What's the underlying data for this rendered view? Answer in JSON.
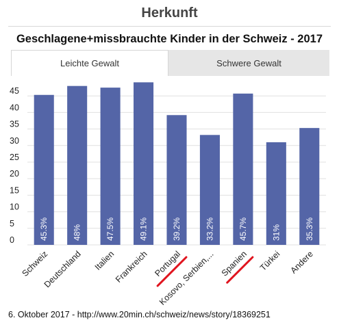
{
  "header": {
    "title": "Herkunft"
  },
  "tabs": [
    {
      "label": "Leichte Gewalt",
      "active": true
    },
    {
      "label": "Schwere Gewalt",
      "active": false
    }
  ],
  "footer": {
    "text": "6. Oktober 2017 - http://www.20min.ch/schweiz/news/story/18369251"
  },
  "colors": {
    "bar": "#5465a7",
    "annotation_underline": "#e0141e",
    "gridline": "#e0e0e0"
  },
  "chart_data": {
    "type": "bar",
    "title": "Geschlagene+missbrauchte Kinder in der Schweiz - 2017",
    "xlabel": "",
    "ylabel": "",
    "categories": [
      "Schweiz",
      "Deutschland",
      "Italien",
      "Frankreich",
      "Portugal",
      "Kosovo, Serbien,...",
      "Spanien",
      "Türkei",
      "Andere"
    ],
    "values": [
      45.3,
      48,
      47.5,
      49.1,
      39.2,
      33.2,
      45.7,
      31,
      35.3
    ],
    "data_labels": [
      "45.3%",
      "48%",
      "47.5%",
      "49.1%",
      "39.2%",
      "33.2%",
      "45.7%",
      "31%",
      "35.3%"
    ],
    "yticks": [
      "0",
      "5",
      "10",
      "15",
      "20",
      "25",
      "30",
      "35",
      "40",
      "45"
    ],
    "ylim": [
      0,
      50
    ],
    "grid": true,
    "legend": "none",
    "highlighted_categories": [
      "Portugal",
      "Spanien"
    ]
  }
}
